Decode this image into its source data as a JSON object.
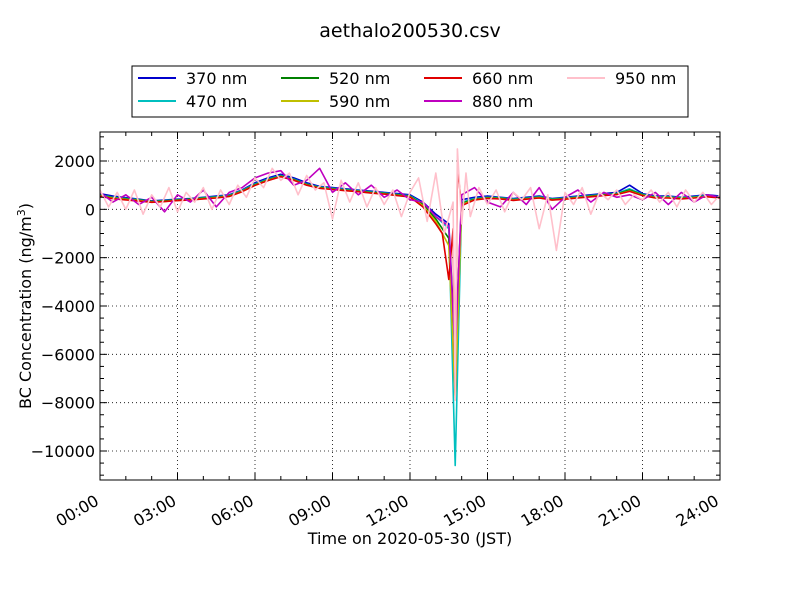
{
  "chart_data": {
    "type": "line",
    "title": "aethalo200530.csv",
    "xlabel": "Time on 2020-05-30 (JST)",
    "ylabel": "BC Concentration (ng/m",
    "ylabel_sup": "3",
    "ylabel_end": ")",
    "xlim": [
      "00:00",
      "24:00"
    ],
    "ylim": [
      -11200,
      3200
    ],
    "x_ticks": [
      "00:00",
      "03:00",
      "06:00",
      "09:00",
      "12:00",
      "15:00",
      "18:00",
      "21:00",
      "24:00"
    ],
    "y_ticks": [
      2000,
      0,
      -2000,
      -4000,
      -6000,
      -8000,
      -10000
    ],
    "y_tick_labels": [
      "2000",
      "0",
      "−2000",
      "−4000",
      "−6000",
      "−8000",
      "−10000"
    ],
    "grid": true,
    "legend_placement": "top-outside",
    "series": [
      {
        "name": "370 nm",
        "color": "#0000cc",
        "x": [
          "00:00",
          "00:30",
          "01:00",
          "01:30",
          "02:00",
          "02:30",
          "03:00",
          "03:30",
          "04:00",
          "04:30",
          "05:00",
          "05:30",
          "06:00",
          "06:30",
          "07:00",
          "07:30",
          "08:00",
          "08:30",
          "09:00",
          "09:30",
          "10:00",
          "10:30",
          "11:00",
          "11:30",
          "12:00",
          "12:30",
          "13:00",
          "13:30",
          "13:45",
          "14:00",
          "14:30",
          "15:00",
          "15:30",
          "16:00",
          "16:30",
          "17:00",
          "17:30",
          "18:00",
          "18:30",
          "19:00",
          "19:30",
          "20:00",
          "20:30",
          "21:00",
          "21:30",
          "22:00",
          "22:30",
          "23:00",
          "23:30",
          "24:00"
        ],
        "y": [
          650,
          550,
          480,
          420,
          350,
          380,
          420,
          450,
          500,
          550,
          600,
          800,
          1100,
          1300,
          1450,
          1300,
          1100,
          950,
          900,
          850,
          800,
          750,
          700,
          650,
          600,
          300,
          -200,
          -600,
          -5800,
          400,
          500,
          550,
          500,
          450,
          500,
          550,
          450,
          500,
          550,
          600,
          650,
          700,
          1000,
          650,
          550,
          550,
          500,
          550,
          600,
          550
        ]
      },
      {
        "name": "470 nm",
        "color": "#00bfbf",
        "x": [
          "00:00",
          "00:30",
          "01:00",
          "01:30",
          "02:00",
          "02:30",
          "03:00",
          "03:30",
          "04:00",
          "04:30",
          "05:00",
          "05:30",
          "06:00",
          "06:30",
          "07:00",
          "07:30",
          "08:00",
          "08:30",
          "09:00",
          "09:30",
          "10:00",
          "10:30",
          "11:00",
          "11:30",
          "12:00",
          "12:30",
          "13:00",
          "13:30",
          "13:45",
          "14:00",
          "14:30",
          "15:00",
          "15:30",
          "16:00",
          "16:30",
          "17:00",
          "17:30",
          "18:00",
          "18:30",
          "19:00",
          "19:30",
          "20:00",
          "20:30",
          "21:00",
          "21:30",
          "22:00",
          "22:30",
          "23:00",
          "23:30",
          "24:00"
        ],
        "y": [
          600,
          500,
          450,
          400,
          330,
          360,
          400,
          430,
          480,
          520,
          580,
          780,
          1050,
          1250,
          1400,
          1250,
          1050,
          920,
          870,
          820,
          780,
          720,
          680,
          620,
          560,
          250,
          -300,
          -800,
          -10600,
          300,
          450,
          500,
          480,
          420,
          470,
          520,
          430,
          470,
          520,
          570,
          620,
          660,
          850,
          620,
          520,
          520,
          480,
          520,
          570,
          520
        ]
      },
      {
        "name": "520 nm",
        "color": "#008000",
        "x": [
          "00:00",
          "00:30",
          "01:00",
          "01:30",
          "02:00",
          "02:30",
          "03:00",
          "03:30",
          "04:00",
          "04:30",
          "05:00",
          "05:30",
          "06:00",
          "06:30",
          "07:00",
          "07:30",
          "08:00",
          "08:30",
          "09:00",
          "09:30",
          "10:00",
          "10:30",
          "11:00",
          "11:30",
          "12:00",
          "12:30",
          "13:00",
          "13:30",
          "13:45",
          "14:00",
          "14:30",
          "15:00",
          "15:30",
          "16:00",
          "16:30",
          "17:00",
          "17:30",
          "18:00",
          "18:30",
          "19:00",
          "19:30",
          "20:00",
          "20:30",
          "21:00",
          "21:30",
          "22:00",
          "22:30",
          "23:00",
          "23:30",
          "24:00"
        ],
        "y": [
          580,
          480,
          430,
          380,
          320,
          350,
          390,
          420,
          460,
          500,
          560,
          760,
          1020,
          1220,
          1380,
          1230,
          1030,
          900,
          850,
          800,
          760,
          700,
          660,
          600,
          540,
          200,
          -400,
          -1200,
          -7600,
          250,
          420,
          480,
          460,
          400,
          450,
          500,
          410,
          450,
          500,
          550,
          600,
          640,
          800,
          600,
          500,
          500,
          460,
          500,
          550,
          500
        ]
      },
      {
        "name": "590 nm",
        "color": "#bfbf00",
        "x": [
          "00:00",
          "00:30",
          "01:00",
          "01:30",
          "02:00",
          "02:30",
          "03:00",
          "03:30",
          "04:00",
          "04:30",
          "05:00",
          "05:30",
          "06:00",
          "06:30",
          "07:00",
          "07:30",
          "08:00",
          "08:30",
          "09:00",
          "09:30",
          "10:00",
          "10:30",
          "11:00",
          "11:30",
          "12:00",
          "12:30",
          "13:00",
          "13:30",
          "13:45",
          "14:00",
          "14:30",
          "15:00",
          "15:30",
          "16:00",
          "16:30",
          "17:00",
          "17:30",
          "18:00",
          "18:30",
          "19:00",
          "19:30",
          "20:00",
          "20:30",
          "21:00",
          "21:30",
          "22:00",
          "22:30",
          "23:00",
          "23:30",
          "24:00"
        ],
        "y": [
          560,
          460,
          410,
          360,
          300,
          330,
          370,
          400,
          440,
          480,
          540,
          740,
          1000,
          1200,
          1360,
          1210,
          1010,
          880,
          830,
          780,
          740,
          680,
          640,
          580,
          520,
          150,
          -500,
          -1500,
          -7800,
          200,
          400,
          460,
          440,
          380,
          430,
          480,
          390,
          430,
          480,
          530,
          580,
          620,
          760,
          580,
          480,
          480,
          440,
          480,
          530,
          480
        ]
      },
      {
        "name": "660 nm",
        "color": "#e00000",
        "x": [
          "00:00",
          "00:30",
          "01:00",
          "01:30",
          "02:00",
          "02:30",
          "03:00",
          "03:30",
          "04:00",
          "04:30",
          "05:00",
          "05:30",
          "06:00",
          "06:30",
          "07:00",
          "07:30",
          "08:00",
          "08:30",
          "09:00",
          "09:30",
          "10:00",
          "10:30",
          "11:00",
          "11:30",
          "12:00",
          "12:30",
          "13:00",
          "13:15",
          "13:30",
          "13:40",
          "13:45",
          "13:50",
          "14:00",
          "14:30",
          "15:00",
          "15:30",
          "16:00",
          "16:30",
          "17:00",
          "17:30",
          "18:00",
          "18:30",
          "19:00",
          "19:30",
          "20:00",
          "20:30",
          "21:00",
          "21:30",
          "22:00",
          "22:30",
          "23:00",
          "23:30",
          "24:00"
        ],
        "y": [
          540,
          440,
          390,
          340,
          290,
          320,
          360,
          390,
          430,
          470,
          530,
          730,
          990,
          1190,
          1350,
          1200,
          1000,
          870,
          820,
          770,
          730,
          670,
          630,
          570,
          510,
          100,
          -600,
          -1000,
          -2900,
          -800,
          -7700,
          1700,
          150,
          390,
          450,
          430,
          370,
          420,
          470,
          380,
          420,
          470,
          520,
          570,
          610,
          740,
          570,
          470,
          470,
          430,
          470,
          520,
          470
        ]
      },
      {
        "name": "880 nm",
        "color": "#bf00bf",
        "x": [
          "00:00",
          "00:30",
          "01:00",
          "01:30",
          "02:00",
          "02:30",
          "03:00",
          "03:30",
          "04:00",
          "04:30",
          "05:00",
          "05:30",
          "06:00",
          "06:30",
          "07:00",
          "07:30",
          "08:00",
          "08:30",
          "09:00",
          "09:30",
          "10:00",
          "10:30",
          "11:00",
          "11:30",
          "12:00",
          "12:30",
          "13:00",
          "13:30",
          "13:45",
          "14:00",
          "14:30",
          "15:00",
          "15:30",
          "16:00",
          "16:30",
          "17:00",
          "17:30",
          "18:00",
          "18:30",
          "19:00",
          "19:30",
          "20:00",
          "20:30",
          "21:00",
          "21:30",
          "22:00",
          "22:30",
          "23:00",
          "23:30",
          "24:00"
        ],
        "y": [
          700,
          300,
          600,
          200,
          500,
          -100,
          600,
          300,
          800,
          100,
          700,
          900,
          1300,
          1500,
          1600,
          1000,
          1200,
          1700,
          700,
          1100,
          600,
          1000,
          500,
          800,
          400,
          300,
          -300,
          -700,
          -6000,
          600,
          900,
          300,
          100,
          700,
          200,
          900,
          0,
          500,
          800,
          300,
          700,
          500,
          600,
          400,
          700,
          200,
          700,
          300,
          600,
          500
        ]
      },
      {
        "name": "950 nm",
        "color": "#ffc0cb",
        "x": [
          "00:00",
          "00:20",
          "00:40",
          "01:00",
          "01:20",
          "01:40",
          "02:00",
          "02:20",
          "02:40",
          "03:00",
          "03:20",
          "03:40",
          "04:00",
          "04:20",
          "04:40",
          "05:00",
          "05:20",
          "05:40",
          "06:00",
          "06:20",
          "06:40",
          "07:00",
          "07:20",
          "07:40",
          "08:00",
          "08:20",
          "08:40",
          "09:00",
          "09:20",
          "09:40",
          "10:00",
          "10:20",
          "10:40",
          "11:00",
          "11:20",
          "11:40",
          "12:00",
          "12:20",
          "12:40",
          "13:00",
          "13:20",
          "13:40",
          "13:45",
          "13:50",
          "14:00",
          "14:10",
          "14:20",
          "14:40",
          "15:00",
          "15:20",
          "15:40",
          "16:00",
          "16:20",
          "16:40",
          "17:00",
          "17:20",
          "17:40",
          "18:00",
          "18:20",
          "18:40",
          "19:00",
          "19:20",
          "19:40",
          "20:00",
          "20:20",
          "20:40",
          "21:00",
          "21:20",
          "21:40",
          "22:00",
          "22:20",
          "22:40",
          "23:00",
          "23:20",
          "23:40",
          "24:00"
        ],
        "y": [
          800,
          100,
          700,
          0,
          800,
          -200,
          600,
          100,
          900,
          -100,
          700,
          300,
          900,
          0,
          800,
          200,
          1000,
          500,
          1300,
          900,
          1700,
          1200,
          1500,
          600,
          1400,
          800,
          1100,
          -400,
          1200,
          300,
          1100,
          100,
          900,
          200,
          800,
          -300,
          700,
          1300,
          -500,
          1500,
          -1000,
          300,
          -7900,
          2500,
          -600,
          1500,
          -300,
          900,
          200,
          800,
          -100,
          700,
          400,
          900,
          -800,
          600,
          -1700,
          700,
          200,
          900,
          -200,
          700,
          400,
          800,
          200,
          600,
          400,
          800,
          300,
          700,
          100,
          800,
          300,
          700,
          200,
          600
        ]
      }
    ]
  }
}
